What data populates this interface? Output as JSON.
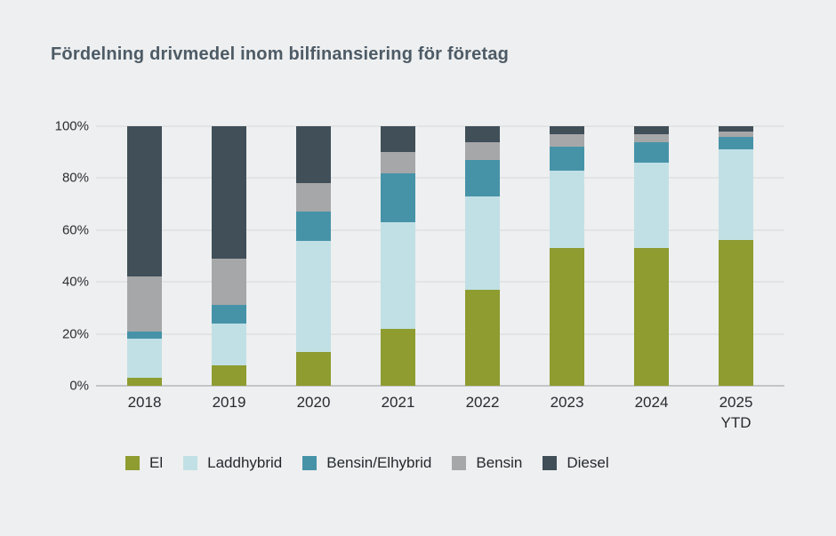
{
  "title": "Fördelning drivmedel inom bilfinansiering för företag",
  "colors": {
    "background": "#eeeff0",
    "gridline": "#d6d7d9",
    "axis_line": "#c4c5c7",
    "title_text": "#4d5b66",
    "axis_text": "#2b2e33"
  },
  "chart_data": {
    "type": "bar",
    "stacked": true,
    "unit": "percent",
    "title": "Fördelning drivmedel inom bilfinansiering för företag",
    "categories": [
      "2018",
      "2019",
      "2020",
      "2021",
      "2022",
      "2023",
      "2024",
      "2025"
    ],
    "category_sublabels": [
      "",
      "",
      "",
      "",
      "",
      "",
      "",
      "YTD"
    ],
    "series": [
      {
        "name": "El",
        "color": "#8e9c30",
        "values": [
          3,
          8,
          13,
          22,
          37,
          53,
          53,
          56
        ]
      },
      {
        "name": "Laddhybrid",
        "color": "#c1e0e5",
        "values": [
          15,
          16,
          43,
          41,
          36,
          30,
          33,
          35
        ]
      },
      {
        "name": "Bensin/Elhybrid",
        "color": "#4693a8",
        "values": [
          3,
          7,
          11,
          19,
          14,
          9,
          8,
          5
        ]
      },
      {
        "name": "Bensin",
        "color": "#a6a7a9",
        "values": [
          21,
          18,
          11,
          8,
          7,
          5,
          3,
          2
        ]
      },
      {
        "name": "Diesel",
        "color": "#404f58",
        "values": [
          58,
          51,
          22,
          10,
          6,
          3,
          3,
          2
        ]
      }
    ],
    "y_ticks": [
      "0%",
      "20%",
      "40%",
      "60%",
      "80%",
      "100%"
    ],
    "ylim": [
      0,
      100
    ],
    "grid": true,
    "legend_position": "bottom"
  }
}
